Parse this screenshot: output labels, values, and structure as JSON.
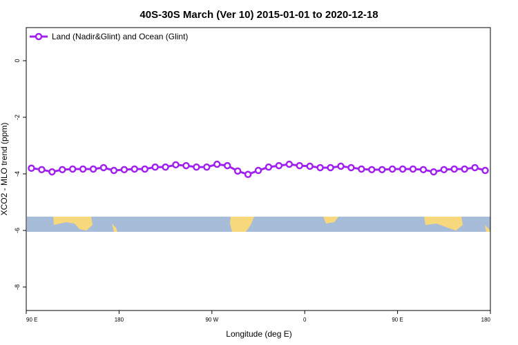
{
  "chart_data": {
    "type": "line",
    "title": "40S-30S March (Ver 10)   2015-01-01 to 2020-12-18",
    "x_label": "Longitude (deg E)",
    "y_label": "XCO2 - MLO trend (ppm)",
    "xlim": [
      90,
      540
    ],
    "ylim": [
      -8.83,
      1.17
    ],
    "xticks": [
      {
        "value": 90,
        "label": "90 E"
      },
      {
        "value": 180,
        "label": "180"
      },
      {
        "value": 270,
        "label": "90 W"
      },
      {
        "value": 360,
        "label": "0"
      },
      {
        "value": 450,
        "label": "90 E"
      },
      {
        "value": 540,
        "label": "180"
      }
    ],
    "yticks": [
      0,
      -2,
      -4,
      -6,
      -8
    ],
    "legend": "top-left",
    "series": [
      {
        "name": "Land (Nadir&Glint) and Ocean (Glint)",
        "color": "#a020f0",
        "x": [
          95,
          105,
          115,
          125,
          135,
          145,
          155,
          165,
          175,
          185,
          195,
          205,
          215,
          225,
          235,
          245,
          255,
          265,
          275,
          285,
          295,
          305,
          315,
          325,
          335,
          345,
          355,
          365,
          375,
          385,
          395,
          405,
          415,
          425,
          435,
          445,
          455,
          465,
          475,
          485,
          495,
          505,
          515,
          525,
          535
        ],
        "values": [
          -3.8,
          -3.85,
          -3.93,
          -3.85,
          -3.83,
          -3.83,
          -3.83,
          -3.78,
          -3.88,
          -3.85,
          -3.83,
          -3.83,
          -3.76,
          -3.76,
          -3.68,
          -3.71,
          -3.76,
          -3.76,
          -3.66,
          -3.71,
          -3.9,
          -4.02,
          -3.88,
          -3.76,
          -3.71,
          -3.66,
          -3.71,
          -3.73,
          -3.78,
          -3.78,
          -3.73,
          -3.78,
          -3.83,
          -3.85,
          -3.85,
          -3.83,
          -3.83,
          -3.83,
          -3.85,
          -3.93,
          -3.85,
          -3.83,
          -3.83,
          -3.78,
          -3.88
        ]
      }
    ]
  }
}
